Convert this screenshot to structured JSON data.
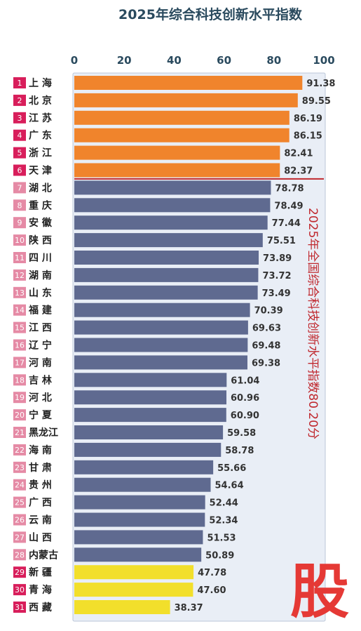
{
  "chart_data": {
    "type": "bar",
    "orientation": "horizontal",
    "title": "2025年综合科技创新水平指数",
    "xlim": [
      0,
      100
    ],
    "x_ticks": [
      0,
      20,
      40,
      60,
      80,
      100
    ],
    "grid": false,
    "categories": [
      "上 海",
      "北 京",
      "江 苏",
      "广 东",
      "浙 江",
      "天 津",
      "湖 北",
      "重 庆",
      "安 徽",
      "陕 西",
      "四 川",
      "湖 南",
      "山 东",
      "福 建",
      "江 西",
      "辽 宁",
      "河 南",
      "吉 林",
      "河 北",
      "宁 夏",
      "黑龙江",
      "海 南",
      "甘 肃",
      "贵 州",
      "广 西",
      "云 南",
      "山 西",
      "内蒙古",
      "新 疆",
      "青 海",
      "西 藏"
    ],
    "ranks": [
      "1",
      "2",
      "3",
      "4",
      "5",
      "6",
      "7",
      "8",
      "9",
      "10",
      "11",
      "12",
      "13",
      "14",
      "15",
      "16",
      "17",
      "18",
      "19",
      "20",
      "21",
      "22",
      "23",
      "24",
      "25",
      "26",
      "27",
      "28",
      "29",
      "30",
      "31"
    ],
    "values": [
      91.38,
      89.55,
      86.19,
      86.15,
      82.41,
      82.37,
      78.78,
      78.49,
      77.44,
      75.51,
      73.89,
      73.72,
      73.49,
      70.39,
      69.63,
      69.48,
      69.38,
      61.04,
      60.96,
      60.9,
      59.58,
      58.78,
      55.66,
      54.64,
      52.44,
      52.34,
      51.53,
      50.89,
      47.78,
      47.6,
      38.37
    ],
    "value_labels": [
      "91.38",
      "89.55",
      "86.19",
      "86.15",
      "82.41",
      "82.37",
      "78.78",
      "78.49",
      "77.44",
      "75.51",
      "73.89",
      "73.72",
      "73.49",
      "70.39",
      "69.63",
      "69.48",
      "69.38",
      "61.04",
      "60.96",
      "60.90",
      "59.58",
      "58.78",
      "55.66",
      "54.64",
      "52.44",
      "52.34",
      "51.53",
      "50.89",
      "47.78",
      "47.60",
      "38.37"
    ],
    "groups": [
      {
        "from": 0,
        "to": 5,
        "color": "#f0842c",
        "rank_color": "#d81e5b"
      },
      {
        "from": 6,
        "to": 27,
        "color": "#5f6a90",
        "rank_color": "#e58aa5"
      },
      {
        "from": 28,
        "to": 30,
        "color": "#f2df2b",
        "rank_color": "#d81e5b"
      }
    ],
    "reference_line": {
      "after_rank": 6,
      "color": "#c0282e"
    },
    "annotation": "2025年全国综合科技创新水平指数80.20分"
  },
  "colors": {
    "panel_background": "#e9eef6",
    "panel_border": "#bcc7d8"
  },
  "watermark": "股"
}
